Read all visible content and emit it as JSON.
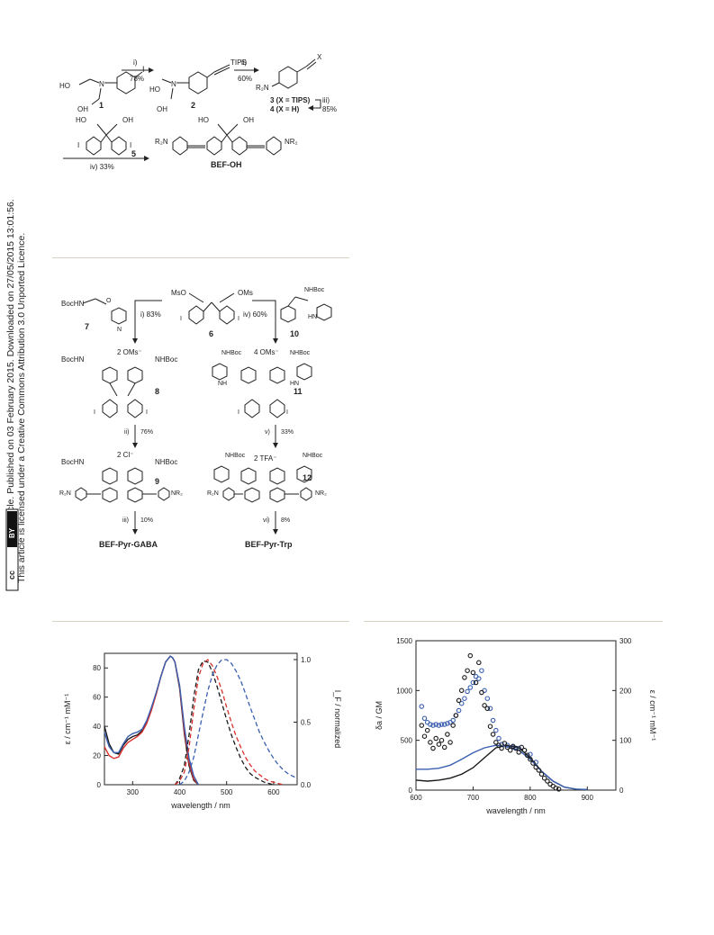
{
  "sidebar": {
    "line1": "Open Access Article. Published on 03 February 2015. Downloaded on 27/05/2015 13:01:56.",
    "line2": "This article is licensed under a Creative Commons Attribution 3.0 Unported Licence.",
    "cc_badge": "cc",
    "by_badge": "BY"
  },
  "scheme1": {
    "step1": "i)",
    "step1_yield": "78%",
    "step2": "ii)",
    "step2_yield": "60%",
    "tips": "TIPS",
    "x": "X",
    "r2n": "R₂N",
    "ho": "HO",
    "oh": "OH",
    "cpd1": "1",
    "cpd2": "2",
    "cpd3_line": "3 (X = TIPS)",
    "cpd4_line": "4 (X = H)",
    "step3": "iii)",
    "step3_yield": "85%",
    "cpd5": "5",
    "step4": "iv) 33%",
    "nr2": "NR₂",
    "product": "BEF-OH"
  },
  "scheme2": {
    "bochn": "BocHN",
    "nhboc": "NHBoc",
    "mso": "MsO",
    "oms": "OMs",
    "cpd7": "7",
    "cpd6": "6",
    "cpd10": "10",
    "step_i": "i) 83%",
    "step_iv": "iv) 60%",
    "counter_8": "2 OMs⁻",
    "counter_11": "4 OMs⁻",
    "cpd8": "8",
    "cpd11": "11",
    "step_ii": "ii)",
    "step_ii_yield": "76%",
    "step_v": "v)",
    "step_v_yield": "33%",
    "counter_9": "2 Cl⁻",
    "counter_12": "2 TFA⁻",
    "cpd9": "9",
    "cpd12": "12",
    "step_iii": "iii)",
    "step_iii_yield": "10%",
    "step_vi": "vi)",
    "step_vi_yield": "8%",
    "product_left": "BEF-Pyr-GABA",
    "product_right": "BEF-Pyr-Trp",
    "nh": "NH",
    "hn": "HN",
    "r2n": "R₂N",
    "nr2": "NR₂"
  },
  "chart_data": [
    {
      "type": "line",
      "xlabel": "wavelength / nm",
      "ylabel": "ε / cm⁻¹ mM⁻¹",
      "y2label": "I_F / normalized",
      "xlim": [
        240,
        650
      ],
      "ylim": [
        0,
        90
      ],
      "y2lim": [
        0,
        1.05
      ],
      "xticks": [
        "300",
        "400",
        "500",
        "600"
      ],
      "yticks": [
        "0",
        "20",
        "40",
        "60",
        "80"
      ],
      "y2ticks": [
        "0.0",
        "0.5",
        "1.0"
      ],
      "colors": [
        "#1a1a1a",
        "#d9302c",
        "#3a5fb0"
      ],
      "absorption": [
        {
          "x": [
            240,
            250,
            260,
            270,
            280,
            290,
            300,
            310,
            320,
            330,
            340,
            350,
            360,
            370,
            380,
            385,
            390,
            400,
            410,
            420,
            430,
            440
          ],
          "y": [
            40,
            28,
            22,
            21,
            27,
            31,
            33,
            34,
            37,
            43,
            52,
            62,
            74,
            84,
            88,
            87,
            84,
            66,
            35,
            13,
            3,
            0
          ]
        },
        {
          "x": [
            240,
            250,
            260,
            270,
            280,
            290,
            300,
            310,
            320,
            330,
            340,
            350,
            360,
            370,
            380,
            385,
            390,
            400,
            410,
            420,
            430,
            440
          ],
          "y": [
            26,
            20,
            18,
            19,
            25,
            29,
            31,
            33,
            36,
            42,
            51,
            62,
            74,
            84,
            88,
            87,
            84,
            67,
            37,
            15,
            4,
            0
          ]
        },
        {
          "x": [
            240,
            250,
            260,
            270,
            280,
            290,
            300,
            310,
            320,
            330,
            340,
            350,
            360,
            370,
            380,
            385,
            390,
            400,
            410,
            420,
            430,
            440
          ],
          "y": [
            36,
            26,
            22,
            22,
            28,
            33,
            35,
            36,
            38,
            44,
            53,
            63,
            74,
            84,
            88,
            87,
            84,
            68,
            40,
            18,
            6,
            0
          ]
        }
      ],
      "emission": [
        {
          "x": [
            390,
            400,
            410,
            420,
            430,
            440,
            450,
            460,
            470,
            480,
            490,
            500,
            510,
            520,
            530,
            540,
            550,
            560,
            570,
            580,
            590,
            600
          ],
          "y": [
            0,
            0.05,
            0.15,
            0.4,
            0.7,
            0.92,
            0.99,
            0.98,
            0.9,
            0.78,
            0.65,
            0.52,
            0.4,
            0.3,
            0.21,
            0.14,
            0.09,
            0.06,
            0.04,
            0.02,
            0.01,
            0
          ]
        },
        {
          "x": [
            390,
            400,
            410,
            420,
            430,
            440,
            450,
            460,
            470,
            480,
            490,
            500,
            510,
            520,
            530,
            540,
            550,
            560,
            570,
            580,
            590,
            600,
            610,
            620
          ],
          "y": [
            0,
            0.03,
            0.1,
            0.3,
            0.6,
            0.86,
            0.97,
            1.0,
            0.95,
            0.86,
            0.75,
            0.62,
            0.5,
            0.39,
            0.3,
            0.22,
            0.16,
            0.11,
            0.08,
            0.05,
            0.03,
            0.02,
            0.01,
            0
          ]
        },
        {
          "x": [
            400,
            410,
            420,
            430,
            440,
            450,
            460,
            470,
            480,
            490,
            500,
            510,
            520,
            530,
            540,
            550,
            560,
            570,
            580,
            590,
            600,
            610,
            620,
            630,
            640,
            650
          ],
          "y": [
            0,
            0.03,
            0.1,
            0.22,
            0.4,
            0.58,
            0.75,
            0.88,
            0.96,
            1.0,
            1.0,
            0.97,
            0.91,
            0.83,
            0.73,
            0.62,
            0.52,
            0.42,
            0.34,
            0.27,
            0.21,
            0.16,
            0.12,
            0.09,
            0.07,
            0.05
          ]
        }
      ]
    },
    {
      "type": "scatter",
      "xlabel": "wavelength / nm",
      "ylabel": "δa / GM",
      "y2label": "ε / cm⁻¹ mM⁻¹",
      "xlim": [
        600,
        950
      ],
      "ylim": [
        0,
        1500
      ],
      "y2lim": [
        0,
        300
      ],
      "xticks": [
        "600",
        "700",
        "800",
        "900"
      ],
      "yticks": [
        "0",
        "500",
        "1000",
        "1500"
      ],
      "y2ticks": [
        "0",
        "100",
        "200",
        "300"
      ],
      "colors": [
        "#1a1a1a",
        "#3a5fb0"
      ],
      "tpa_black": {
        "x": [
          610,
          615,
          620,
          625,
          630,
          635,
          640,
          645,
          650,
          655,
          660,
          665,
          670,
          675,
          680,
          685,
          690,
          695,
          700,
          705,
          710,
          715,
          720,
          725,
          730,
          735,
          740,
          745,
          750,
          755,
          760,
          765,
          770,
          775,
          780,
          785,
          790,
          795,
          800,
          805,
          810,
          815,
          820,
          825,
          830,
          835,
          840,
          845,
          850
        ],
        "y": [
          650,
          540,
          600,
          480,
          420,
          520,
          460,
          500,
          430,
          560,
          480,
          650,
          750,
          900,
          1000,
          1130,
          1200,
          1350,
          1180,
          1080,
          1280,
          980,
          850,
          820,
          640,
          560,
          480,
          450,
          420,
          470,
          430,
          400,
          440,
          420,
          380,
          430,
          400,
          350,
          310,
          270,
          230,
          200,
          160,
          120,
          90,
          60,
          40,
          20,
          10
        ]
      },
      "tpa_blue": {
        "x": [
          610,
          615,
          620,
          625,
          630,
          635,
          640,
          645,
          650,
          655,
          660,
          665,
          670,
          675,
          680,
          685,
          690,
          695,
          700,
          705,
          710,
          715,
          720,
          725,
          730,
          735,
          740,
          745,
          750,
          760,
          770,
          780,
          790,
          800,
          810
        ],
        "y": [
          840,
          720,
          680,
          660,
          650,
          660,
          650,
          660,
          660,
          670,
          680,
          700,
          750,
          800,
          870,
          920,
          990,
          1030,
          1080,
          1140,
          1120,
          1200,
          1000,
          920,
          820,
          700,
          600,
          520,
          460,
          450,
          430,
          420,
          400,
          360,
          280
        ]
      },
      "abs_black": {
        "x": [
          600,
          620,
          640,
          660,
          680,
          700,
          720,
          740,
          760,
          780,
          800,
          820,
          840,
          860,
          880,
          900
        ],
        "y": [
          20,
          18,
          20,
          24,
          32,
          45,
          65,
          85,
          90,
          85,
          65,
          38,
          18,
          6,
          2,
          1
        ]
      },
      "abs_blue": {
        "x": [
          600,
          620,
          640,
          660,
          680,
          700,
          720,
          740,
          760,
          780,
          800,
          820,
          840,
          860,
          880,
          900
        ],
        "y": [
          42,
          42,
          44,
          50,
          62,
          75,
          85,
          90,
          88,
          80,
          62,
          38,
          18,
          6,
          2,
          1
        ]
      }
    }
  ]
}
